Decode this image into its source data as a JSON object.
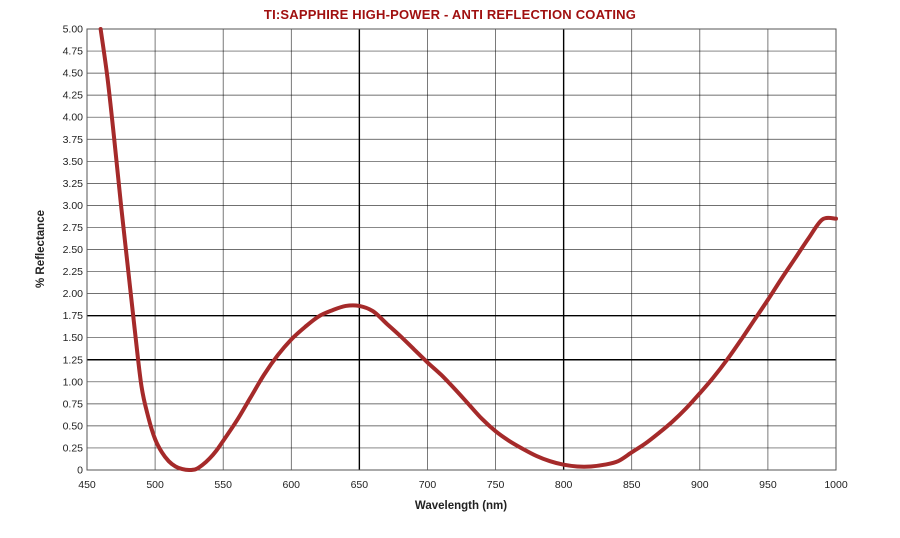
{
  "chart_data": {
    "type": "line",
    "title": "TI:SAPPHIRE HIGH-POWER - ANTI REFLECTION COATING",
    "xlabel": "Wavelength (nm)",
    "ylabel": "% Reflectance",
    "xlim": [
      450,
      1000
    ],
    "ylim": [
      0,
      5.0
    ],
    "x_ticks": [
      "450",
      "500",
      "550",
      "600",
      "650",
      "700",
      "750",
      "800",
      "850",
      "900",
      "950",
      "1000"
    ],
    "y_ticks": [
      "0",
      "0.25",
      "0.50",
      "0.75",
      "1.00",
      "1.25",
      "1.50",
      "1.75",
      "2.00",
      "2.25",
      "2.50",
      "2.75",
      "3.00",
      "3.25",
      "3.50",
      "3.75",
      "4.00",
      "4.25",
      "4.50",
      "4.75",
      "5.00"
    ],
    "grid": true,
    "highlighted_y_gridlines": [
      1.25,
      1.75
    ],
    "highlighted_x_gridlines": [
      650,
      800
    ],
    "colors": {
      "title": "#a01010",
      "line": "#a52a2a",
      "grid": "#000000",
      "frame": "#555555"
    },
    "series": [
      {
        "x": [
          460,
          465,
          470,
          475,
          480,
          485,
          490,
          495,
          500,
          505,
          510,
          515,
          520,
          525,
          530,
          535,
          540,
          545,
          550,
          560,
          570,
          580,
          590,
          600,
          610,
          620,
          630,
          640,
          650,
          660,
          670,
          680,
          690,
          700,
          710,
          720,
          730,
          740,
          750,
          760,
          770,
          780,
          790,
          800,
          810,
          820,
          830,
          840,
          850,
          860,
          870,
          880,
          890,
          900,
          910,
          920,
          930,
          940,
          950,
          960,
          970,
          980,
          990,
          1000
        ],
        "y": [
          5.0,
          4.45,
          3.75,
          3.0,
          2.3,
          1.6,
          0.95,
          0.6,
          0.35,
          0.2,
          0.1,
          0.04,
          0.01,
          0.0,
          0.01,
          0.06,
          0.13,
          0.22,
          0.33,
          0.56,
          0.82,
          1.08,
          1.3,
          1.48,
          1.62,
          1.74,
          1.81,
          1.86,
          1.86,
          1.8,
          1.66,
          1.52,
          1.37,
          1.22,
          1.08,
          0.92,
          0.75,
          0.58,
          0.44,
          0.33,
          0.24,
          0.16,
          0.1,
          0.06,
          0.04,
          0.04,
          0.06,
          0.1,
          0.2,
          0.3,
          0.42,
          0.55,
          0.7,
          0.87,
          1.05,
          1.25,
          1.47,
          1.7,
          1.93,
          2.17,
          2.4,
          2.63,
          2.84,
          2.85
        ]
      }
    ]
  }
}
